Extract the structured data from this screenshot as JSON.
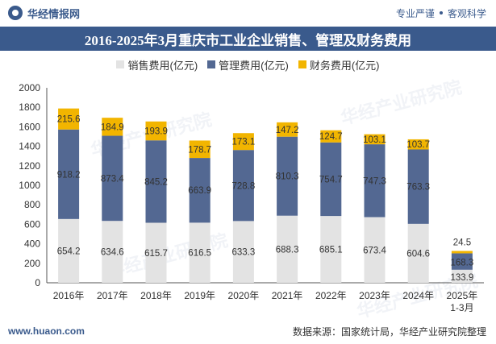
{
  "header": {
    "brand": "华经情报网",
    "slogan_left": "专业严谨",
    "slogan_right": "客观科学"
  },
  "footer": {
    "website": "www.huaon.com",
    "source": "数据来源：国家统计局，华经产业研究院整理"
  },
  "watermark": "华经产业研究院",
  "colors": {
    "title_bg": "#3a5a8c",
    "sales": "#e3e3e3",
    "management": "#536892",
    "finance": "#f2b500"
  },
  "chart_data": {
    "type": "bar",
    "stacked": true,
    "title": "2016-2025年3月重庆市工业企业销售、管理及财务费用",
    "categories": [
      "2016年",
      "2017年",
      "2018年",
      "2019年",
      "2020年",
      "2021年",
      "2022年",
      "2023年",
      "2024年",
      "2025年\n1-3月"
    ],
    "series": [
      {
        "name": "销售费用(亿元)",
        "values": [
          654.2,
          634.6,
          615.7,
          616.5,
          633.3,
          688.3,
          685.1,
          673.4,
          604.6,
          133.9
        ],
        "color": "#e3e3e3"
      },
      {
        "name": "管理费用(亿元)",
        "values": [
          918.2,
          873.4,
          845.2,
          663.9,
          728.8,
          810.3,
          754.7,
          747.3,
          763.3,
          168.3
        ],
        "color": "#536892"
      },
      {
        "name": "财务费用(亿元)",
        "values": [
          215.6,
          184.9,
          193.9,
          178.7,
          173.1,
          147.2,
          124.7,
          103.1,
          103.7,
          24.5
        ],
        "color": "#f2b500"
      }
    ],
    "ylim": [
      0,
      2000
    ],
    "yticks": [
      0,
      200,
      400,
      600,
      800,
      1000,
      1200,
      1400,
      1600,
      1800,
      2000
    ],
    "legend_position": "top",
    "xlabel": "",
    "ylabel": ""
  }
}
